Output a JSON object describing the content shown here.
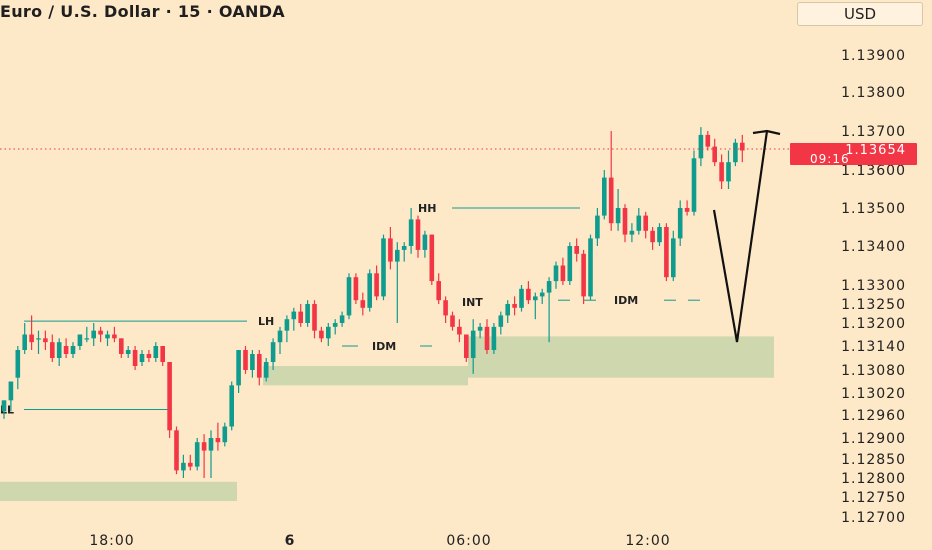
{
  "header": {
    "title": "Euro / U.S. Dollar · 15 · OANDA",
    "currency": "USD"
  },
  "price_badge": {
    "price": "1.13654",
    "countdown": "09:16"
  },
  "colors": {
    "background": "#fde8c8",
    "bull": "#0f9b8e",
    "bear": "#f23645",
    "zone": "#c6d4a8",
    "badge": "#f23645",
    "text": "#222222",
    "line": "#0f9b8e"
  },
  "chart_data": {
    "type": "candlestick",
    "title": "Euro / U.S. Dollar · 15 · OANDA",
    "y_ticks": [
      "1.13900",
      "1.13800",
      "1.13700",
      "1.13600",
      "1.13500",
      "1.13400",
      "1.13300",
      "1.13250",
      "1.13200",
      "1.13140",
      "1.13080",
      "1.13020",
      "1.12960",
      "1.12900",
      "1.12850",
      "1.12800",
      "1.12750",
      "1.12700"
    ],
    "x_ticks": [
      "18:00",
      "6",
      "06:00",
      "12:00"
    ],
    "last_price": 1.13654,
    "annotations": [
      {
        "text": "LH",
        "price": 1.13205
      },
      {
        "text": "LL",
        "price": 1.12975
      },
      {
        "text": "HH",
        "price": 1.135
      },
      {
        "text": "IDM",
        "price": 1.1314
      },
      {
        "text": "INT",
        "price": 1.13255
      },
      {
        "text": "IDM",
        "price": 1.1326
      }
    ],
    "zones": [
      {
        "from": 1.1274,
        "to": 1.1279
      },
      {
        "from": 1.1304,
        "to": 1.1309
      },
      {
        "from": 1.1306,
        "to": 1.13165
      }
    ],
    "candles": [
      [
        1.1297,
        1.13,
        1.1295,
        1.13
      ],
      [
        1.13,
        1.1305,
        1.1297,
        1.1305
      ],
      [
        1.1306,
        1.1314,
        1.1303,
        1.1313
      ],
      [
        1.1313,
        1.132,
        1.1312,
        1.1317
      ],
      [
        1.1317,
        1.1322,
        1.1313,
        1.1315
      ],
      [
        1.1316,
        1.1318,
        1.1312,
        1.1316
      ],
      [
        1.1316,
        1.1318,
        1.1313,
        1.1315
      ],
      [
        1.1315,
        1.1317,
        1.131,
        1.1311
      ],
      [
        1.1311,
        1.1316,
        1.1309,
        1.1315
      ],
      [
        1.1314,
        1.1316,
        1.1311,
        1.1312
      ],
      [
        1.1312,
        1.1315,
        1.1311,
        1.1314
      ],
      [
        1.1314,
        1.1317,
        1.1313,
        1.1317
      ],
      [
        1.1316,
        1.1319,
        1.1315,
        1.1316
      ],
      [
        1.1316,
        1.132,
        1.1314,
        1.1318
      ],
      [
        1.1318,
        1.1319,
        1.1315,
        1.1317
      ],
      [
        1.1316,
        1.1318,
        1.1314,
        1.1317
      ],
      [
        1.1317,
        1.1319,
        1.1315,
        1.1316
      ],
      [
        1.1316,
        1.1316,
        1.1311,
        1.1312
      ],
      [
        1.1312,
        1.1314,
        1.1311,
        1.1313
      ],
      [
        1.1313,
        1.1314,
        1.1308,
        1.1309
      ],
      [
        1.131,
        1.1313,
        1.1309,
        1.1312
      ],
      [
        1.1312,
        1.1313,
        1.131,
        1.1311
      ],
      [
        1.1311,
        1.1315,
        1.131,
        1.1314
      ],
      [
        1.1314,
        1.1314,
        1.1309,
        1.131
      ],
      [
        1.131,
        1.131,
        1.129,
        1.1292
      ],
      [
        1.1292,
        1.1293,
        1.1281,
        1.1282
      ],
      [
        1.1282,
        1.1286,
        1.128,
        1.1284
      ],
      [
        1.1284,
        1.1286,
        1.1282,
        1.1283
      ],
      [
        1.1283,
        1.129,
        1.1282,
        1.1289
      ],
      [
        1.1289,
        1.1291,
        1.128,
        1.1287
      ],
      [
        1.1287,
        1.1292,
        1.128,
        1.129
      ],
      [
        1.129,
        1.1294,
        1.1287,
        1.1289
      ],
      [
        1.1289,
        1.1294,
        1.1288,
        1.1293
      ],
      [
        1.1293,
        1.1305,
        1.1292,
        1.1304
      ],
      [
        1.1304,
        1.1313,
        1.1302,
        1.1313
      ],
      [
        1.1313,
        1.1314,
        1.1307,
        1.1308
      ],
      [
        1.1308,
        1.1313,
        1.1306,
        1.1312
      ],
      [
        1.1312,
        1.1313,
        1.1304,
        1.1306
      ],
      [
        1.1306,
        1.1311,
        1.1305,
        1.131
      ],
      [
        1.131,
        1.1316,
        1.1308,
        1.1315
      ],
      [
        1.1315,
        1.1319,
        1.1312,
        1.1318
      ],
      [
        1.1318,
        1.1322,
        1.1315,
        1.1321
      ],
      [
        1.1321,
        1.1324,
        1.1318,
        1.1323
      ],
      [
        1.1323,
        1.1325,
        1.1319,
        1.132
      ],
      [
        1.132,
        1.1326,
        1.1319,
        1.1325
      ],
      [
        1.1325,
        1.1326,
        1.1316,
        1.1318
      ],
      [
        1.1318,
        1.1319,
        1.1315,
        1.1316
      ],
      [
        1.1316,
        1.132,
        1.1314,
        1.1319
      ],
      [
        1.1319,
        1.1321,
        1.1317,
        1.132
      ],
      [
        1.132,
        1.1323,
        1.1319,
        1.1322
      ],
      [
        1.1322,
        1.1333,
        1.1321,
        1.1332
      ],
      [
        1.1332,
        1.1333,
        1.1325,
        1.1326
      ],
      [
        1.1326,
        1.1328,
        1.1322,
        1.1324
      ],
      [
        1.1324,
        1.1334,
        1.1323,
        1.1333
      ],
      [
        1.1333,
        1.1335,
        1.1326,
        1.1327
      ],
      [
        1.1327,
        1.1343,
        1.1326,
        1.1342
      ],
      [
        1.1342,
        1.1345,
        1.1334,
        1.1336
      ],
      [
        1.1336,
        1.1341,
        1.132,
        1.1339
      ],
      [
        1.1339,
        1.1341,
        1.1336,
        1.134
      ],
      [
        1.134,
        1.135,
        1.1338,
        1.1347
      ],
      [
        1.1347,
        1.1348,
        1.1337,
        1.1339
      ],
      [
        1.1339,
        1.1344,
        1.1337,
        1.1343
      ],
      [
        1.1343,
        1.1343,
        1.133,
        1.1331
      ],
      [
        1.1331,
        1.1333,
        1.1325,
        1.1326
      ],
      [
        1.1326,
        1.1327,
        1.132,
        1.1322
      ],
      [
        1.1322,
        1.1323,
        1.1318,
        1.1319
      ],
      [
        1.1319,
        1.1321,
        1.1315,
        1.1317
      ],
      [
        1.1317,
        1.1317,
        1.131,
        1.1311
      ],
      [
        1.1311,
        1.1321,
        1.1307,
        1.1318
      ],
      [
        1.1318,
        1.132,
        1.1316,
        1.1319
      ],
      [
        1.1319,
        1.1321,
        1.1312,
        1.1313
      ],
      [
        1.1313,
        1.132,
        1.1312,
        1.1319
      ],
      [
        1.1319,
        1.1323,
        1.1317,
        1.1322
      ],
      [
        1.1322,
        1.1326,
        1.132,
        1.1325
      ],
      [
        1.1325,
        1.1327,
        1.1322,
        1.1324
      ],
      [
        1.1324,
        1.133,
        1.1323,
        1.1329
      ],
      [
        1.1329,
        1.1331,
        1.1325,
        1.1326
      ],
      [
        1.1326,
        1.1328,
        1.1321,
        1.1327
      ],
      [
        1.1327,
        1.1329,
        1.1325,
        1.1328
      ],
      [
        1.1328,
        1.1332,
        1.1315,
        1.1331
      ],
      [
        1.1331,
        1.1336,
        1.1329,
        1.1335
      ],
      [
        1.1335,
        1.1337,
        1.133,
        1.1331
      ],
      [
        1.1331,
        1.1341,
        1.133,
        1.134
      ],
      [
        1.134,
        1.1342,
        1.1336,
        1.1338
      ],
      [
        1.1338,
        1.1339,
        1.1325,
        1.1327
      ],
      [
        1.1327,
        1.1343,
        1.1326,
        1.1342
      ],
      [
        1.1342,
        1.135,
        1.134,
        1.1348
      ],
      [
        1.1348,
        1.136,
        1.1347,
        1.1358
      ],
      [
        1.1358,
        1.137,
        1.1344,
        1.1346
      ],
      [
        1.1346,
        1.1355,
        1.1344,
        1.135
      ],
      [
        1.135,
        1.1351,
        1.1341,
        1.1343
      ],
      [
        1.1343,
        1.1346,
        1.1341,
        1.1344
      ],
      [
        1.1344,
        1.135,
        1.1343,
        1.1348
      ],
      [
        1.1348,
        1.1349,
        1.1342,
        1.1344
      ],
      [
        1.1344,
        1.1345,
        1.1339,
        1.1341
      ],
      [
        1.1341,
        1.1346,
        1.134,
        1.1345
      ],
      [
        1.1345,
        1.1346,
        1.1331,
        1.1332
      ],
      [
        1.1332,
        1.1344,
        1.1331,
        1.1342
      ],
      [
        1.1342,
        1.1352,
        1.134,
        1.135
      ],
      [
        1.135,
        1.1352,
        1.1348,
        1.1349
      ],
      [
        1.1349,
        1.1365,
        1.1348,
        1.1363
      ],
      [
        1.1363,
        1.1371,
        1.1361,
        1.1369
      ],
      [
        1.1369,
        1.137,
        1.1365,
        1.1366
      ],
      [
        1.1366,
        1.1368,
        1.1361,
        1.1362
      ],
      [
        1.1362,
        1.1364,
        1.1355,
        1.1357
      ],
      [
        1.1357,
        1.1365,
        1.1355,
        1.1362
      ],
      [
        1.1362,
        1.1368,
        1.1361,
        1.1367
      ],
      [
        1.1367,
        1.1369,
        1.1362,
        1.1365
      ]
    ]
  }
}
